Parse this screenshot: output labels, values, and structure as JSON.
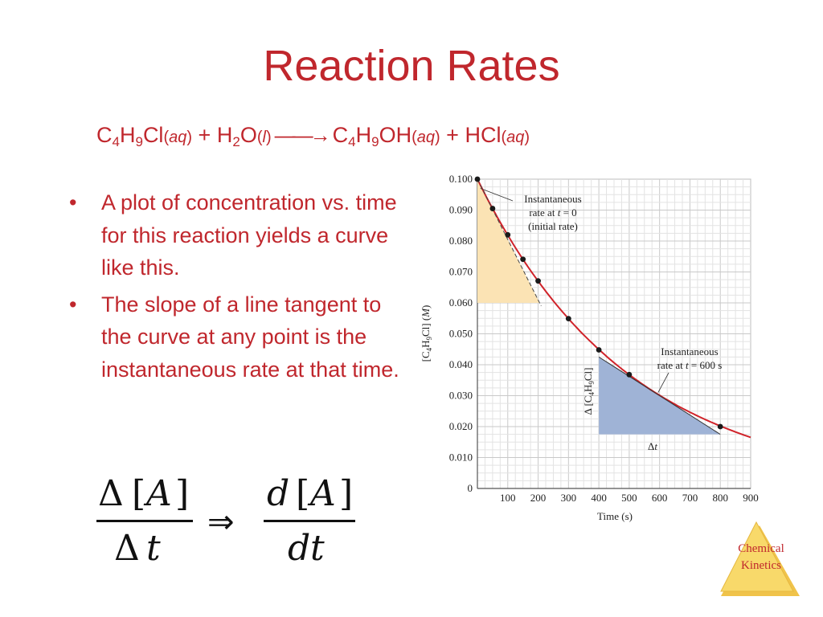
{
  "slide": {
    "title": "Reaction Rates",
    "equation": {
      "reactant1": {
        "c": "C",
        "n1": "4",
        "h": "H",
        "n2": "9",
        "rest": "Cl",
        "phase": "aq"
      },
      "plus1": "+",
      "reactant2": {
        "h": "H",
        "n": "2",
        "o": "O",
        "phase": "l"
      },
      "arrow": "——→",
      "product1": {
        "c": "C",
        "n1": "4",
        "h": "H",
        "n2": "9",
        "rest": "OH",
        "phase": "aq"
      },
      "plus2": "+",
      "product2": {
        "name": "HCl",
        "phase": "aq"
      }
    },
    "bullets": [
      "A plot of concentration vs. time for this reaction yields a curve like this.",
      "The slope of a line tangent to the curve at any point is the instantaneous rate at that time."
    ],
    "bullet_marker": "•",
    "formula": {
      "delta": "Δ",
      "A": "A",
      "t": "t",
      "d": "d",
      "implies": "⇒"
    },
    "badge": {
      "line1": "Chemical",
      "line2": "Kinetics"
    },
    "colors": {
      "accent": "#c0272d",
      "curve": "#d0232a",
      "badge_fill": "#f8d96a",
      "yellow_triangle": "#fbe3b4",
      "blue_triangle": "#9fb3d6"
    }
  },
  "chart_data": {
    "type": "line",
    "xlabel": "Time (s)",
    "ylabel_parts": {
      "open": "[C",
      "n1": "4",
      "mid": "H",
      "n2": "9",
      "close": "Cl] (",
      "unit": "M",
      "end": ")"
    },
    "xlim": [
      0,
      900
    ],
    "ylim": [
      0,
      0.1
    ],
    "x_ticks": [
      100,
      200,
      300,
      400,
      500,
      600,
      700,
      800,
      900
    ],
    "y_ticks": [
      "0",
      "0.010",
      "0.020",
      "0.030",
      "0.040",
      "0.050",
      "0.060",
      "0.070",
      "0.080",
      "0.090",
      "0.100"
    ],
    "grid": true,
    "points": [
      {
        "x": 0,
        "y": 0.1
      },
      {
        "x": 50,
        "y": 0.0905
      },
      {
        "x": 100,
        "y": 0.082
      },
      {
        "x": 150,
        "y": 0.0741
      },
      {
        "x": 200,
        "y": 0.0671
      },
      {
        "x": 300,
        "y": 0.0549
      },
      {
        "x": 400,
        "y": 0.0448
      },
      {
        "x": 500,
        "y": 0.0368
      },
      {
        "x": 800,
        "y": 0.02
      }
    ],
    "curve_rate": 0.002,
    "tangent_initial": {
      "from": [
        0,
        0.1
      ],
      "to": [
        210,
        0.059
      ]
    },
    "triangle_initial": {
      "x": [
        0,
        205
      ],
      "y": [
        0.1,
        0.06
      ]
    },
    "tangent_600": {
      "from": [
        400,
        0.0425
      ],
      "to": [
        800,
        0.0175
      ]
    },
    "triangle_600": {
      "x": [
        400,
        800
      ],
      "y": [
        0.0425,
        0.0175
      ]
    },
    "annotations": [
      {
        "id": "initial",
        "lines": [
          {
            "text": "Instantaneous"
          },
          {
            "pre": "rate at ",
            "var": "t",
            "post": " = 0"
          },
          {
            "text": "(initial rate)"
          }
        ],
        "anchor": [
          10,
          0.097
        ]
      },
      {
        "id": "t600",
        "lines": [
          {
            "text": "Instantaneous"
          },
          {
            "pre": "rate at ",
            "var": "t",
            "post": " = 600 s"
          }
        ],
        "anchor": [
          595,
          0.031
        ]
      }
    ],
    "delta_t_label": {
      "delta": "Δ",
      "var": "t"
    },
    "delta_c_label": {
      "pre": "Δ [C",
      "n1": "4",
      "mid": "H",
      "n2": "9",
      "close": "Cl]"
    }
  }
}
